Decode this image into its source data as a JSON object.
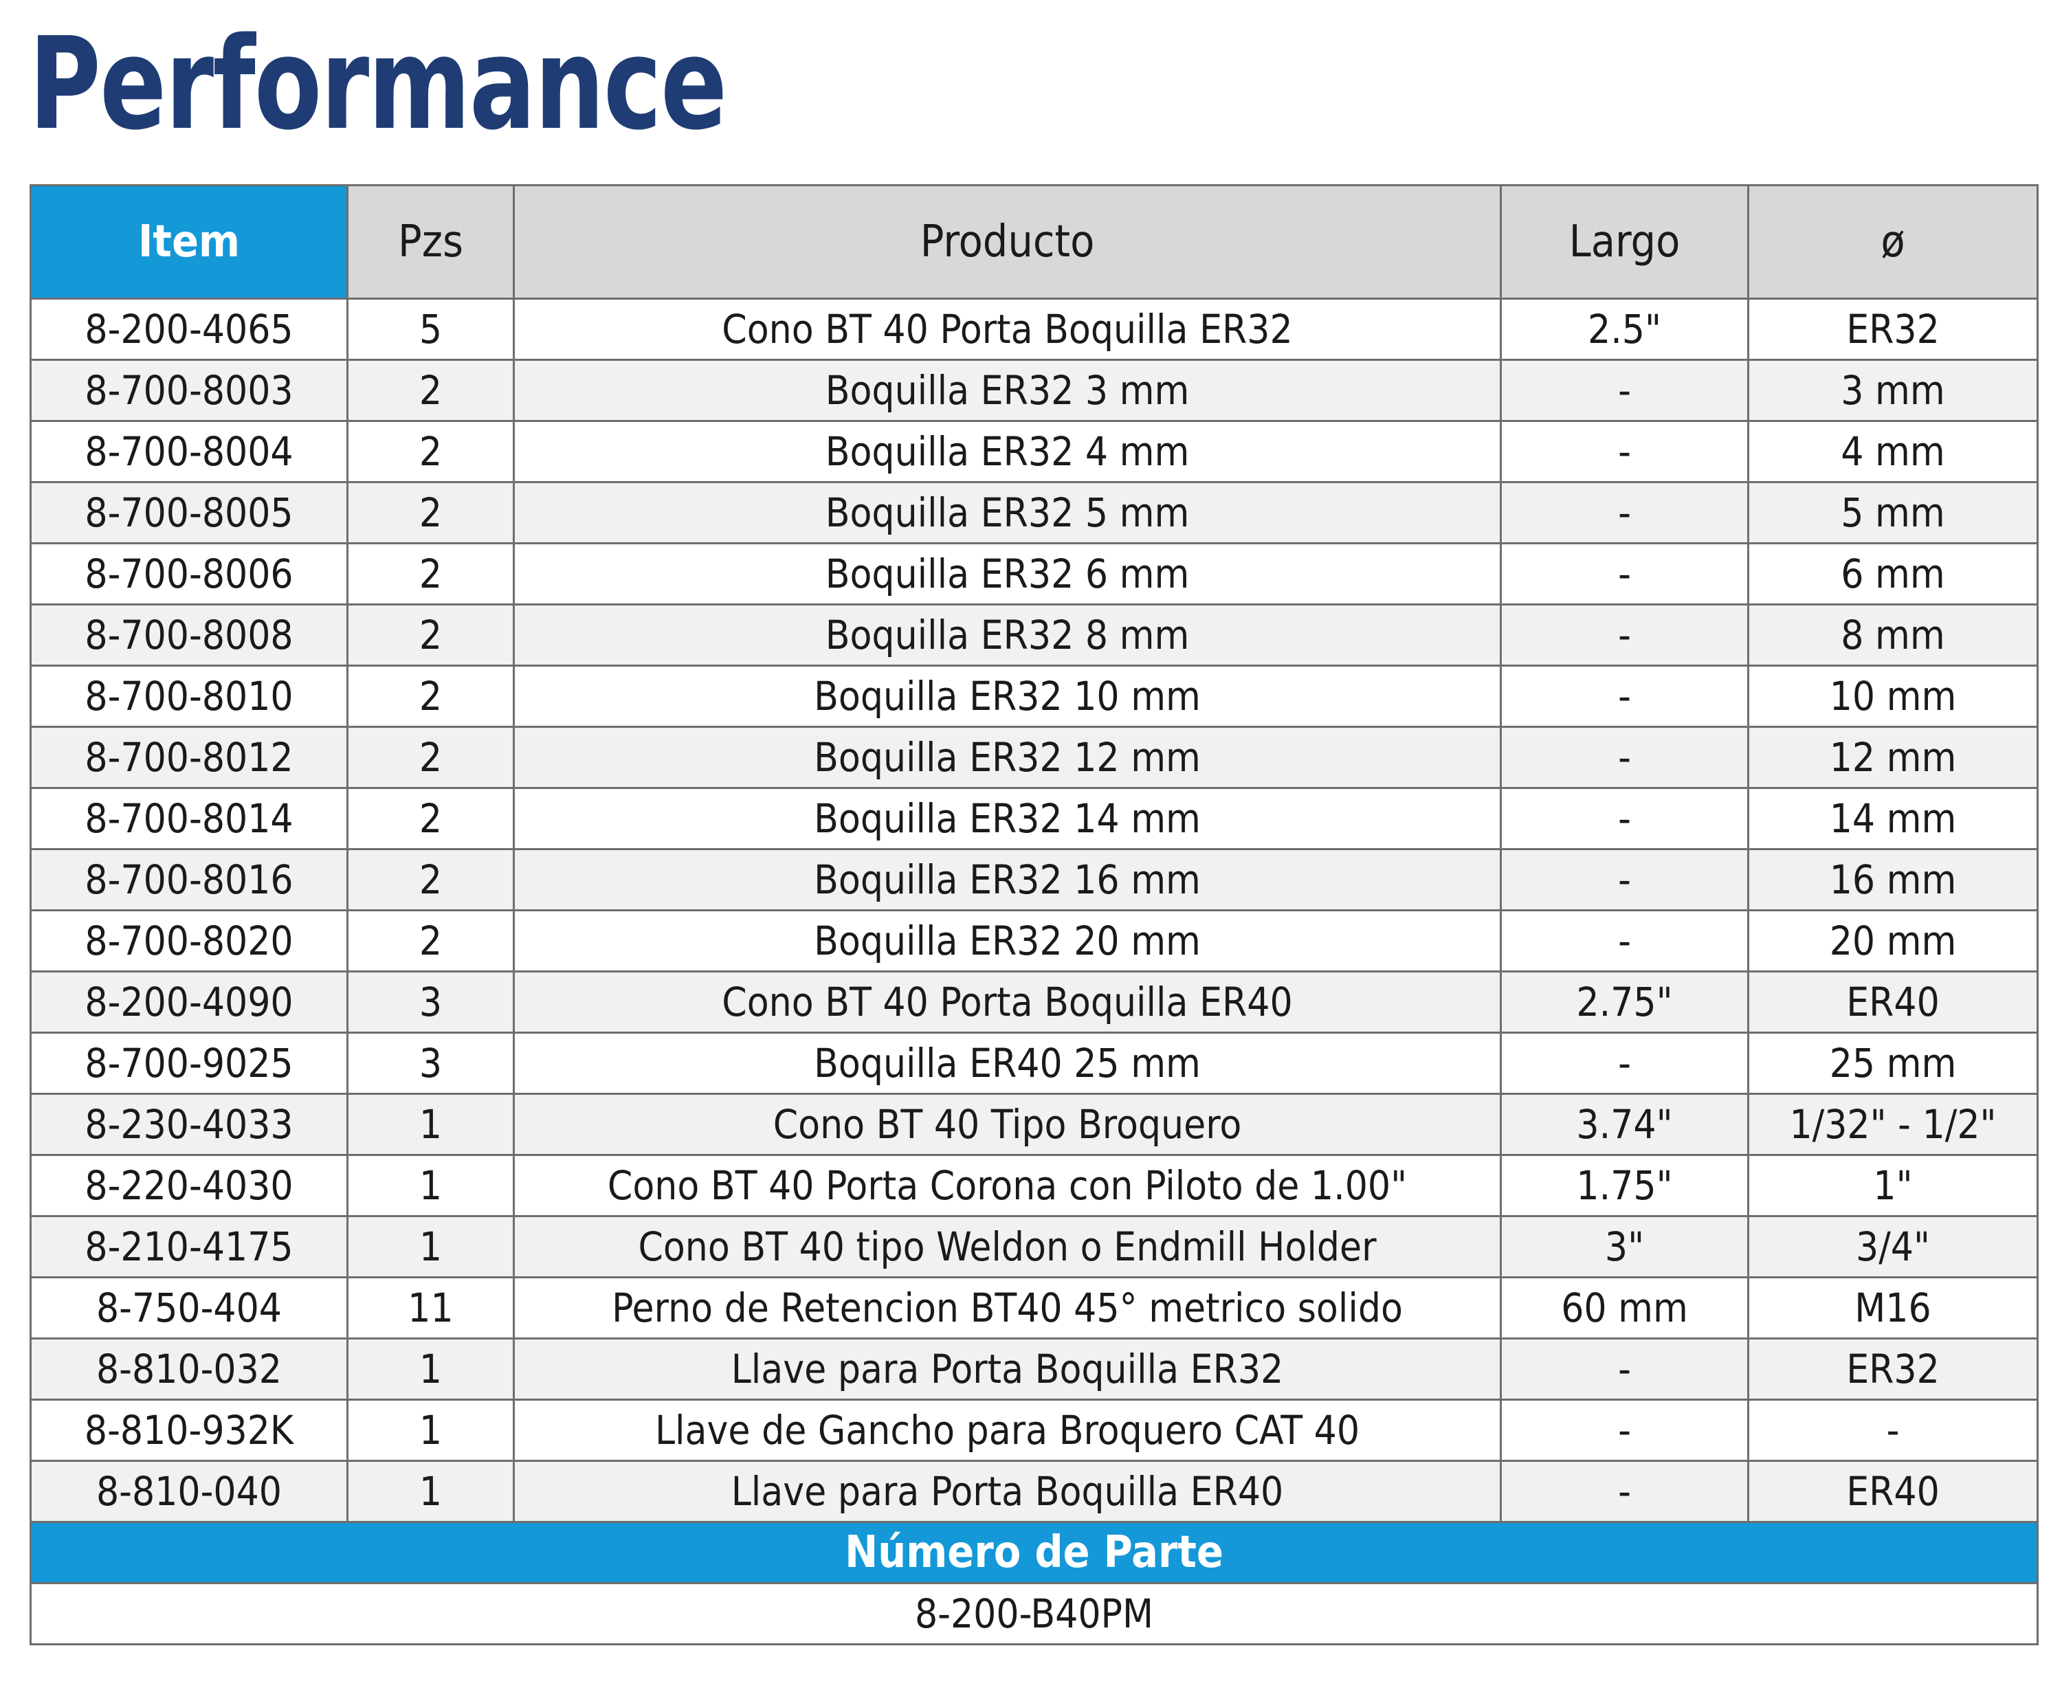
{
  "title": "Performance",
  "table": {
    "headers": {
      "item": "Item",
      "pzs": "Pzs",
      "producto": "Producto",
      "largo": "Largo",
      "diametro": "ø"
    },
    "rows": [
      {
        "item": "8-200-4065",
        "pzs": "5",
        "producto": "Cono BT 40 Porta Boquilla ER32",
        "largo": "2.5\"",
        "diametro": "ER32"
      },
      {
        "item": "8-700-8003",
        "pzs": "2",
        "producto": "Boquilla ER32 3 mm",
        "largo": "-",
        "diametro": "3 mm"
      },
      {
        "item": "8-700-8004",
        "pzs": "2",
        "producto": "Boquilla ER32 4 mm",
        "largo": "-",
        "diametro": "4 mm"
      },
      {
        "item": "8-700-8005",
        "pzs": "2",
        "producto": "Boquilla ER32 5 mm",
        "largo": "-",
        "diametro": "5 mm"
      },
      {
        "item": "8-700-8006",
        "pzs": "2",
        "producto": "Boquilla ER32 6 mm",
        "largo": "-",
        "diametro": "6 mm"
      },
      {
        "item": "8-700-8008",
        "pzs": "2",
        "producto": "Boquilla ER32 8 mm",
        "largo": "-",
        "diametro": "8 mm"
      },
      {
        "item": "8-700-8010",
        "pzs": "2",
        "producto": "Boquilla ER32 10 mm",
        "largo": "-",
        "diametro": "10 mm"
      },
      {
        "item": "8-700-8012",
        "pzs": "2",
        "producto": "Boquilla ER32 12 mm",
        "largo": "-",
        "diametro": "12 mm"
      },
      {
        "item": "8-700-8014",
        "pzs": "2",
        "producto": "Boquilla ER32 14 mm",
        "largo": "-",
        "diametro": "14 mm"
      },
      {
        "item": "8-700-8016",
        "pzs": "2",
        "producto": "Boquilla ER32 16 mm",
        "largo": "-",
        "diametro": "16 mm"
      },
      {
        "item": "8-700-8020",
        "pzs": "2",
        "producto": "Boquilla ER32 20 mm",
        "largo": "-",
        "diametro": "20 mm"
      },
      {
        "item": "8-200-4090",
        "pzs": "3",
        "producto": "Cono BT 40 Porta Boquilla ER40",
        "largo": "2.75\"",
        "diametro": "ER40"
      },
      {
        "item": "8-700-9025",
        "pzs": "3",
        "producto": "Boquilla ER40 25 mm",
        "largo": "-",
        "diametro": "25 mm"
      },
      {
        "item": "8-230-4033",
        "pzs": "1",
        "producto": "Cono BT 40 Tipo Broquero",
        "largo": "3.74\"",
        "diametro": "1/32\" - 1/2\""
      },
      {
        "item": "8-220-4030",
        "pzs": "1",
        "producto": "Cono BT 40 Porta Corona con Piloto de 1.00\"",
        "largo": "1.75\"",
        "diametro": "1\""
      },
      {
        "item": "8-210-4175",
        "pzs": "1",
        "producto": "Cono BT 40 tipo Weldon o Endmill Holder",
        "largo": "3\"",
        "diametro": "3/4\""
      },
      {
        "item": "8-750-404",
        "pzs": "11",
        "producto": "Perno de Retencion BT40 45° metrico solido",
        "largo": "60 mm",
        "diametro": "M16"
      },
      {
        "item": "8-810-032",
        "pzs": "1",
        "producto": "Llave para Porta Boquilla ER32",
        "largo": "-",
        "diametro": "ER32"
      },
      {
        "item": "8-810-932K",
        "pzs": "1",
        "producto": "Llave de Gancho para Broquero CAT 40",
        "largo": "-",
        "diametro": "-"
      },
      {
        "item": "8-810-040",
        "pzs": "1",
        "producto": "Llave para Porta Boquilla ER40",
        "largo": "-",
        "diametro": "ER40"
      }
    ],
    "part_number_label": "Número de Parte",
    "part_number_value": "8-200-B40PM"
  },
  "colors": {
    "title": "#1f3c74",
    "accent": "#1498d8",
    "header_gray": "#d8d8d8",
    "alt_row": "#f1f1f1",
    "border": "#6e6e6e"
  }
}
